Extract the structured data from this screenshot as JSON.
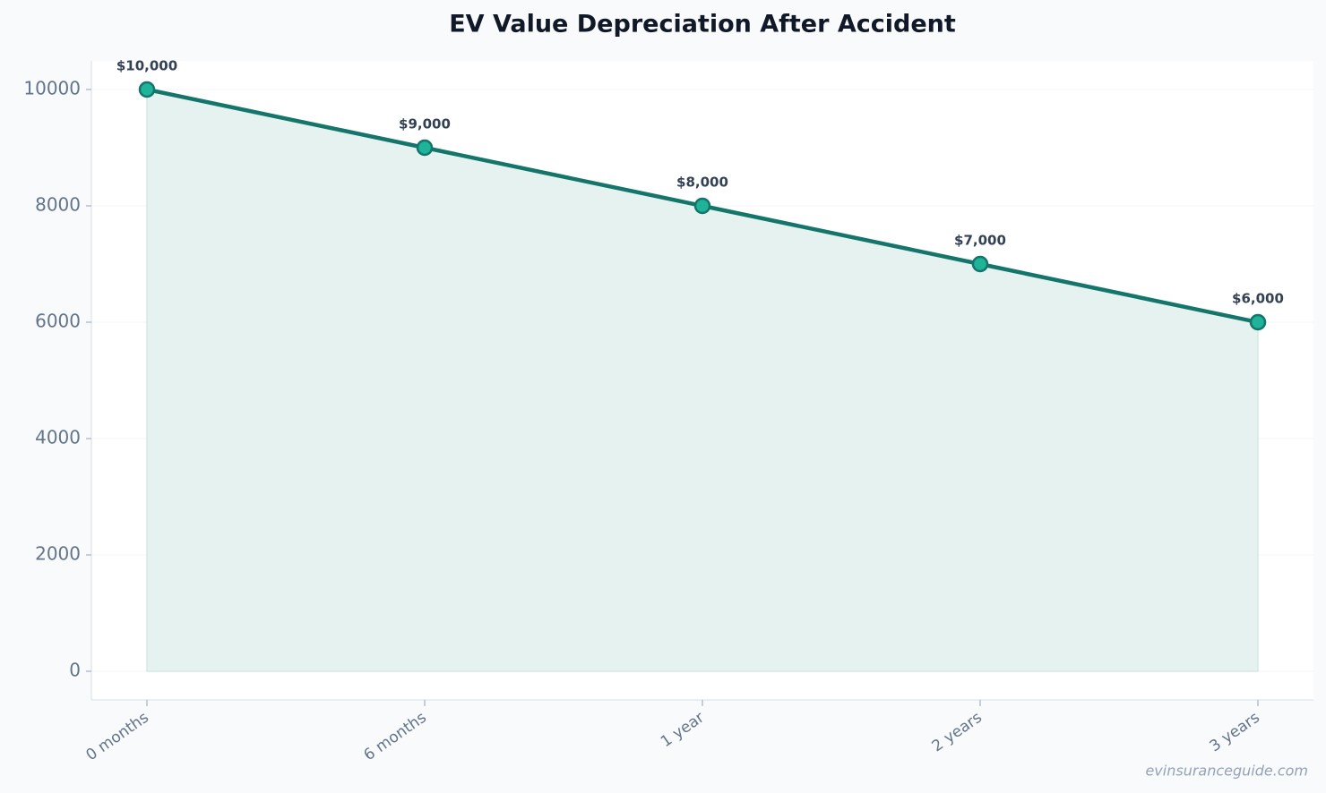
{
  "chart_data": {
    "type": "line",
    "title": "EV Value Depreciation After Accident",
    "categories": [
      "0 months",
      "6 months",
      "1 year",
      "2 years",
      "3 years"
    ],
    "values": [
      10000,
      9000,
      8000,
      7000,
      6000
    ],
    "value_labels": [
      "$10,000",
      "$9,000",
      "$8,000",
      "$7,000",
      "$6,000"
    ],
    "color": "#14756b",
    "marker_color": "#1fb39a",
    "fill": true,
    "ylim": [
      -492,
      10492
    ],
    "yticks": [
      0,
      2000,
      4000,
      6000,
      8000,
      10000
    ],
    "grid": true,
    "watermark": "evinsuranceguide.com"
  }
}
